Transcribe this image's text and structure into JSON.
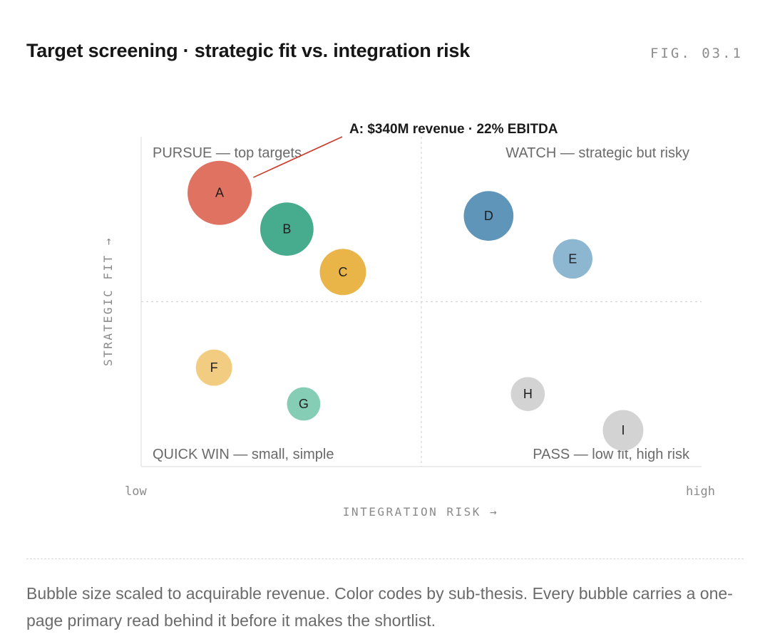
{
  "header": {
    "title": "Target screening · strategic fit vs. integration risk",
    "fig_label": "FIG. 03.1"
  },
  "chart_data": {
    "type": "scatter",
    "title": "Target screening · strategic fit vs. integration risk",
    "xlabel": "INTEGRATION RISK →",
    "ylabel": "STRATEGIC FIT →",
    "x_tick_labels": {
      "low": "low",
      "high": "high"
    },
    "xlim": [
      0,
      100
    ],
    "ylim": [
      0,
      100
    ],
    "grid": "dashed quadrant dividers at midpoints",
    "quadrants": {
      "top_left": "PURSUE — top targets",
      "top_right": "WATCH — strategic but risky",
      "bottom_left": "QUICK WIN — small, simple",
      "bottom_right": "PASS — low fit, high risk"
    },
    "points": [
      {
        "label": "A",
        "x": 14,
        "y": 83,
        "size": 100,
        "color": "#e07262"
      },
      {
        "label": "B",
        "x": 26,
        "y": 72,
        "size": 69,
        "color": "#47ab8d"
      },
      {
        "label": "C",
        "x": 36,
        "y": 59,
        "size": 52,
        "color": "#e9b548"
      },
      {
        "label": "D",
        "x": 62,
        "y": 76,
        "size": 60,
        "color": "#5f95b8"
      },
      {
        "label": "E",
        "x": 77,
        "y": 63,
        "size": 38,
        "color": "#8db6d0"
      },
      {
        "label": "F",
        "x": 13,
        "y": 30,
        "size": 32,
        "color": "#f2cc80"
      },
      {
        "label": "G",
        "x": 29,
        "y": 19,
        "size": 27,
        "color": "#86cdb5"
      },
      {
        "label": "H",
        "x": 69,
        "y": 22,
        "size": 28,
        "color": "#d3d3d3"
      },
      {
        "label": "I",
        "x": 86,
        "y": 11,
        "size": 40,
        "color": "#d3d3d3"
      }
    ],
    "annotation": {
      "point": "A",
      "text": "A: $340M revenue · 22% EBITDA",
      "color": "#cc3a2c"
    }
  },
  "caption": "Bubble size scaled to acquirable revenue. Color codes by sub-thesis. Every bubble carries a one-page primary read behind it before it makes the shortlist.",
  "colors": {
    "quadrant_text": "#6a6a6a",
    "axis_text": "#8a8a8a",
    "leader_line": "#cc3a2c"
  }
}
